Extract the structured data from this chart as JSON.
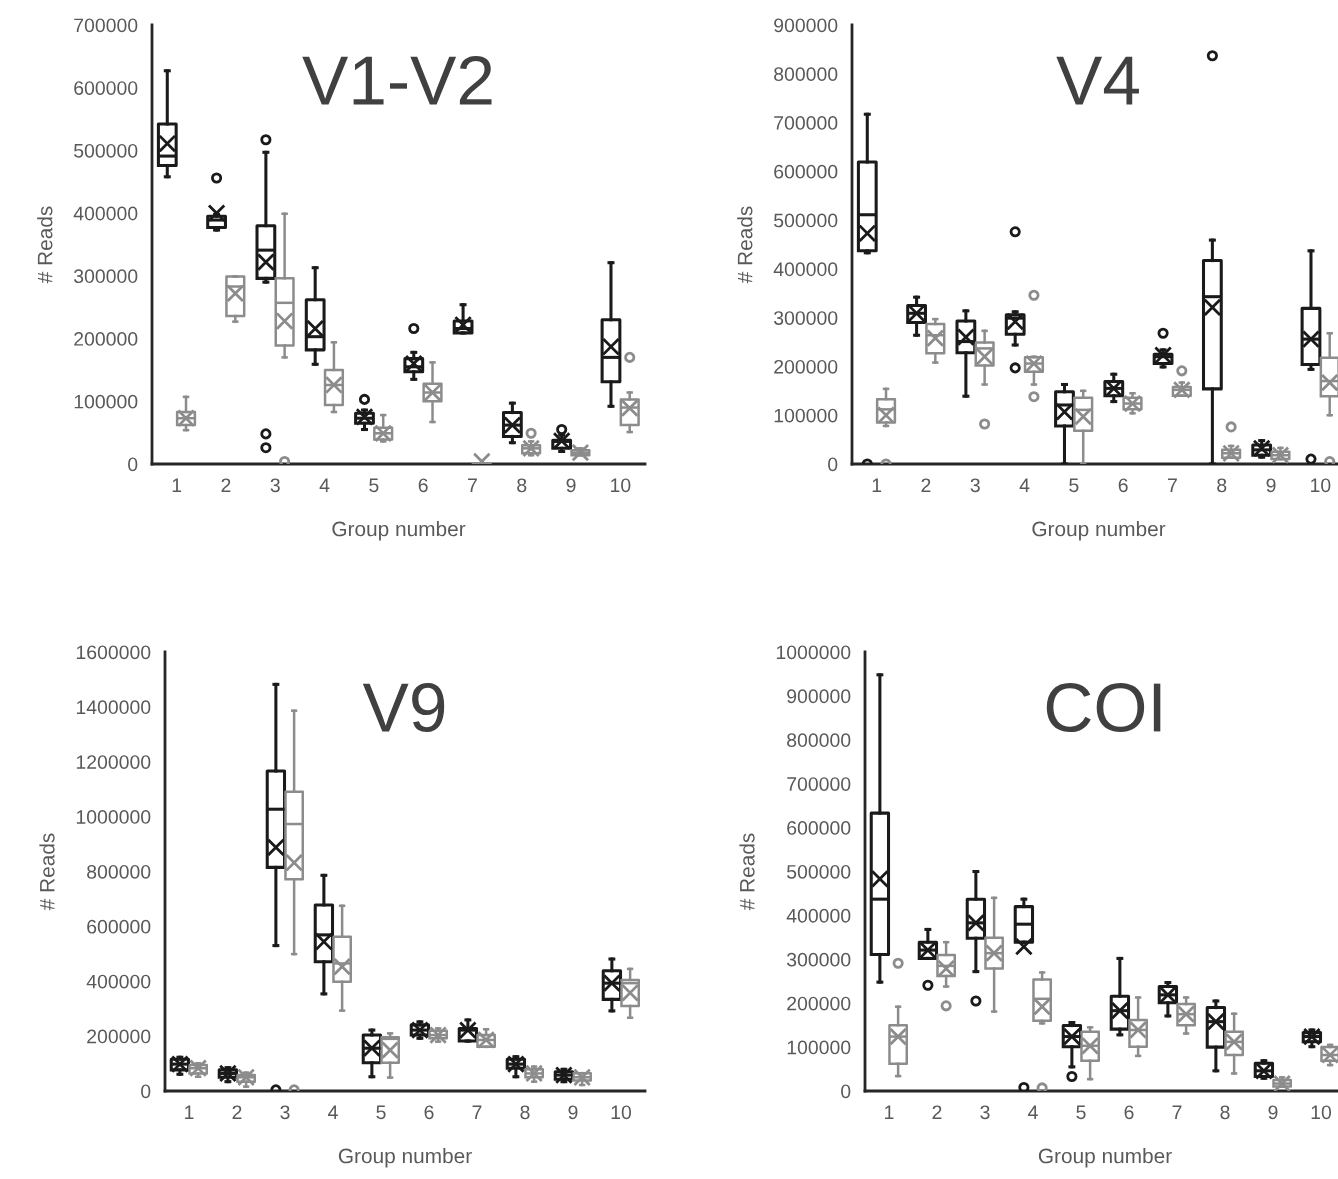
{
  "chart_data": [
    {
      "type": "box",
      "title": "V1-V2",
      "xlabel": "Group number",
      "ylabel": "# Reads",
      "categories": [
        "1",
        "2",
        "3",
        "4",
        "5",
        "6",
        "7",
        "8",
        "9",
        "10"
      ],
      "ylim": [
        0,
        700000
      ],
      "yticks": [
        0,
        100000,
        200000,
        300000,
        400000,
        500000,
        600000,
        700000
      ],
      "series": [
        {
          "color": "#1a1a1a",
          "boxes": [
            {
              "low": 458000,
              "q1": 476000,
              "median": 491000,
              "q3": 542000,
              "high": 627000,
              "mean": 511000
            },
            {
              "low": 373000,
              "q1": 377000,
              "median": 389000,
              "q3": 395000,
              "high": 398000,
              "mean": 400000,
              "outliers": [
                456000
              ]
            },
            {
              "low": 290000,
              "q1": 296000,
              "median": 341000,
              "q3": 380000,
              "high": 497000,
              "mean": 322000,
              "outliers": [
                517000,
                48000,
                26000
              ]
            },
            {
              "low": 159000,
              "q1": 182000,
              "median": 203000,
              "q3": 262000,
              "high": 313000,
              "mean": 216000
            },
            {
              "low": 55000,
              "q1": 65000,
              "median": 73000,
              "q3": 81000,
              "high": 86000,
              "mean": 75000,
              "outliers": [
                103000
              ]
            },
            {
              "low": 135000,
              "q1": 147000,
              "median": 155000,
              "q3": 168000,
              "high": 178000,
              "mean": 160000,
              "outliers": [
                216000
              ]
            },
            {
              "low": 209000,
              "q1": 209000,
              "median": 216000,
              "q3": 228000,
              "high": 254000,
              "mean": 222000
            },
            {
              "low": 34000,
              "q1": 44000,
              "median": 62000,
              "q3": 82000,
              "high": 97000,
              "mean": 62000
            },
            {
              "low": 20000,
              "q1": 25000,
              "median": 36000,
              "q3": 38000,
              "high": 46000,
              "mean": 37000,
              "outliers": [
                55000
              ]
            },
            {
              "low": 92000,
              "q1": 131000,
              "median": 170000,
              "q3": 230000,
              "high": 321000,
              "mean": 187000
            }
          ]
        },
        {
          "color": "#8c8c8c",
          "boxes": [
            {
              "low": 54000,
              "q1": 62000,
              "median": 73000,
              "q3": 83000,
              "high": 107000,
              "mean": 73000
            },
            {
              "low": 227000,
              "q1": 236000,
              "median": 283000,
              "q3": 299000,
              "high": 299000,
              "mean": 272000
            },
            {
              "low": 170000,
              "q1": 189000,
              "median": 257000,
              "q3": 296000,
              "high": 399000,
              "mean": 228000,
              "outliers": [
                4000
              ]
            },
            {
              "low": 83000,
              "q1": 94000,
              "median": 126000,
              "q3": 150000,
              "high": 194000,
              "mean": 126000
            },
            {
              "low": 36000,
              "q1": 39000,
              "median": 49000,
              "q3": 58000,
              "high": 78000,
              "mean": 49000
            },
            {
              "low": 67000,
              "q1": 100000,
              "median": 114000,
              "q3": 128000,
              "high": 162000,
              "mean": 114000
            },
            {
              "low": 0,
              "q1": 0,
              "median": 0,
              "q3": 0,
              "high": 0,
              "mean": 4000
            },
            {
              "low": 14000,
              "q1": 17000,
              "median": 25000,
              "q3": 30000,
              "high": 36000,
              "mean": 25000,
              "outliers": [
                49000
              ]
            },
            {
              "low": 14000,
              "q1": 14000,
              "median": 18000,
              "q3": 22000,
              "high": 25000,
              "mean": 18000
            },
            {
              "low": 51000,
              "q1": 62000,
              "median": 90000,
              "q3": 103000,
              "high": 114000,
              "mean": 89000,
              "outliers": [
                170000
              ]
            }
          ]
        }
      ]
    },
    {
      "type": "box",
      "title": "V4",
      "xlabel": "Group number",
      "ylabel": "# Reads",
      "categories": [
        "1",
        "2",
        "3",
        "4",
        "5",
        "6",
        "7",
        "8",
        "9",
        "10"
      ],
      "ylim": [
        0,
        900000
      ],
      "yticks": [
        0,
        100000,
        200000,
        300000,
        400000,
        500000,
        600000,
        700000,
        800000,
        900000
      ],
      "series": [
        {
          "color": "#1a1a1a",
          "boxes": [
            {
              "low": 433000,
              "q1": 437000,
              "median": 511000,
              "q3": 619000,
              "high": 717000,
              "mean": 473000,
              "outliers": [
                0
              ]
            },
            {
              "low": 264000,
              "q1": 290000,
              "median": 309000,
              "q3": 325000,
              "high": 342000,
              "mean": 309000
            },
            {
              "low": 139000,
              "q1": 228000,
              "median": 251000,
              "q3": 293000,
              "high": 314000,
              "mean": 260000
            },
            {
              "low": 244000,
              "q1": 266000,
              "median": 299000,
              "q3": 306000,
              "high": 312000,
              "mean": 292000,
              "outliers": [
                476000,
                197000
              ]
            },
            {
              "low": 0,
              "q1": 78000,
              "median": 121000,
              "q3": 148000,
              "high": 163000,
              "mean": 107000
            },
            {
              "low": 128000,
              "q1": 140000,
              "median": 155000,
              "q3": 169000,
              "high": 184000,
              "mean": 155000
            },
            {
              "low": 199000,
              "q1": 206000,
              "median": 220000,
              "q3": 225000,
              "high": 234000,
              "mean": 223000,
              "outliers": [
                268000
              ]
            },
            {
              "low": 0,
              "q1": 154000,
              "median": 343000,
              "q3": 417000,
              "high": 459000,
              "mean": 321000,
              "outliers": [
                837000
              ]
            },
            {
              "low": 14000,
              "q1": 18000,
              "median": 29000,
              "q3": 39000,
              "high": 48000,
              "mean": 32000
            },
            {
              "low": 194000,
              "q1": 204000,
              "median": 256000,
              "q3": 319000,
              "high": 437000,
              "mean": 256000,
              "outliers": [
                10000
              ]
            }
          ]
        },
        {
          "color": "#8c8c8c",
          "boxes": [
            {
              "low": 78000,
              "q1": 85000,
              "median": 112000,
              "q3": 133000,
              "high": 154000,
              "mean": 100000,
              "outliers": [
                0
              ]
            },
            {
              "low": 208000,
              "q1": 227000,
              "median": 264000,
              "q3": 287000,
              "high": 297000,
              "mean": 258000
            },
            {
              "low": 163000,
              "q1": 202000,
              "median": 237000,
              "q3": 249000,
              "high": 273000,
              "mean": 220000,
              "outliers": [
                82000
              ]
            },
            {
              "low": 163000,
              "q1": 189000,
              "median": 206000,
              "q3": 219000,
              "high": 220000,
              "mean": 206000,
              "outliers": [
                346000,
                138000
              ]
            },
            {
              "low": 0,
              "q1": 68000,
              "median": 111000,
              "q3": 136000,
              "high": 150000,
              "mean": 97000
            },
            {
              "low": 104000,
              "q1": 112000,
              "median": 124000,
              "q3": 136000,
              "high": 145000,
              "mean": 124000
            },
            {
              "low": 140000,
              "q1": 140000,
              "median": 152000,
              "q3": 158000,
              "high": 167000,
              "mean": 152000,
              "outliers": [
                191000
              ]
            },
            {
              "low": 13000,
              "q1": 13000,
              "median": 22000,
              "q3": 29000,
              "high": 37000,
              "mean": 22000,
              "outliers": [
                76000
              ]
            },
            {
              "low": 10000,
              "q1": 10000,
              "median": 18000,
              "q3": 25000,
              "high": 33000,
              "mean": 18000
            },
            {
              "low": 100000,
              "q1": 139000,
              "median": 170000,
              "q3": 218000,
              "high": 268000,
              "mean": 167000,
              "outliers": [
                5000
              ]
            }
          ]
        }
      ]
    },
    {
      "type": "box",
      "title": "V9",
      "xlabel": "Group number",
      "ylabel": "# Reads",
      "categories": [
        "1",
        "2",
        "3",
        "4",
        "5",
        "6",
        "7",
        "8",
        "9",
        "10"
      ],
      "ylim": [
        0,
        1600000
      ],
      "yticks": [
        0,
        200000,
        400000,
        600000,
        800000,
        1000000,
        1200000,
        1400000,
        1600000
      ],
      "series": [
        {
          "color": "#1a1a1a",
          "boxes": [
            {
              "low": 61000,
              "q1": 77000,
              "median": 98000,
              "q3": 116000,
              "high": 123000,
              "mean": 98000
            },
            {
              "low": 34000,
              "q1": 50000,
              "median": 64000,
              "q3": 77000,
              "high": 85000,
              "mean": 64000
            },
            {
              "low": 530000,
              "q1": 815000,
              "median": 1027000,
              "q3": 1166000,
              "high": 1482000,
              "mean": 888000,
              "outliers": [
                4000
              ]
            },
            {
              "low": 354000,
              "q1": 471000,
              "median": 569000,
              "q3": 678000,
              "high": 786000,
              "mean": 544000
            },
            {
              "low": 52000,
              "q1": 103000,
              "median": 156000,
              "q3": 204000,
              "high": 222000,
              "mean": 156000
            },
            {
              "low": 192000,
              "q1": 204000,
              "median": 222000,
              "q3": 241000,
              "high": 252000,
              "mean": 222000
            },
            {
              "low": 182000,
              "q1": 182000,
              "median": 222000,
              "q3": 228000,
              "high": 259000,
              "mean": 222000
            },
            {
              "low": 52000,
              "q1": 83000,
              "median": 98000,
              "q3": 116000,
              "high": 125000,
              "mean": 98000
            },
            {
              "low": 34000,
              "q1": 43000,
              "median": 58000,
              "q3": 70000,
              "high": 79000,
              "mean": 58000
            },
            {
              "low": 292000,
              "q1": 334000,
              "median": 393000,
              "q3": 438000,
              "high": 481000,
              "mean": 393000
            }
          ]
        },
        {
          "color": "#8c8c8c",
          "boxes": [
            {
              "low": 52000,
              "q1": 64000,
              "median": 83000,
              "q3": 95000,
              "high": 101000,
              "mean": 83000
            },
            {
              "low": 16000,
              "q1": 34000,
              "median": 50000,
              "q3": 58000,
              "high": 67000,
              "mean": 50000
            },
            {
              "low": 499000,
              "q1": 772000,
              "median": 973000,
              "q3": 1091000,
              "high": 1386000,
              "mean": 832000,
              "outliers": [
                4000
              ]
            },
            {
              "low": 293000,
              "q1": 398000,
              "median": 465000,
              "q3": 562000,
              "high": 675000,
              "mean": 453000
            },
            {
              "low": 49000,
              "q1": 103000,
              "median": 190000,
              "q3": 196000,
              "high": 210000,
              "mean": 149000
            },
            {
              "low": 180000,
              "q1": 192000,
              "median": 204000,
              "q3": 220000,
              "high": 228000,
              "mean": 204000
            },
            {
              "low": 161000,
              "q1": 161000,
              "median": 186000,
              "q3": 204000,
              "high": 225000,
              "mean": 186000
            },
            {
              "low": 34000,
              "q1": 50000,
              "median": 64000,
              "q3": 79000,
              "high": 89000,
              "mean": 64000
            },
            {
              "low": 22000,
              "q1": 38000,
              "median": 50000,
              "q3": 65000,
              "high": 65000,
              "mean": 50000
            },
            {
              "low": 267000,
              "q1": 310000,
              "median": 393000,
              "q3": 405000,
              "high": 445000,
              "mean": 358000
            }
          ]
        }
      ]
    },
    {
      "type": "box",
      "title": "COI",
      "xlabel": "Group number",
      "ylabel": "# Reads",
      "categories": [
        "1",
        "2",
        "3",
        "4",
        "5",
        "6",
        "7",
        "8",
        "9",
        "10"
      ],
      "ylim": [
        0,
        1000000
      ],
      "yticks": [
        0,
        100000,
        200000,
        300000,
        400000,
        500000,
        600000,
        700000,
        800000,
        900000,
        1000000
      ],
      "series": [
        {
          "color": "#1a1a1a",
          "boxes": [
            {
              "low": 248000,
              "q1": 311000,
              "median": 437000,
              "q3": 633000,
              "high": 948000,
              "mean": 483000
            },
            {
              "low": 302000,
              "q1": 302000,
              "median": 321000,
              "q3": 339000,
              "high": 368000,
              "mean": 321000,
              "outliers": [
                241000
              ]
            },
            {
              "low": 272000,
              "q1": 348000,
              "median": 383000,
              "q3": 437000,
              "high": 500000,
              "mean": 383000,
              "outliers": [
                205000
              ]
            },
            {
              "low": 339000,
              "q1": 339000,
              "median": 380000,
              "q3": 420000,
              "high": 437000,
              "mean": 329000,
              "outliers": [
                8000
              ]
            },
            {
              "low": 55000,
              "q1": 101000,
              "median": 124000,
              "q3": 149000,
              "high": 156000,
              "mean": 124000,
              "outliers": [
                33000
              ]
            },
            {
              "low": 128000,
              "q1": 141000,
              "median": 183000,
              "q3": 216000,
              "high": 302000,
              "mean": 183000
            },
            {
              "low": 171000,
              "q1": 201000,
              "median": 219000,
              "q3": 238000,
              "high": 247000,
              "mean": 219000
            },
            {
              "low": 46000,
              "q1": 100000,
              "median": 158000,
              "q3": 190000,
              "high": 205000,
              "mean": 158000
            },
            {
              "low": 29000,
              "q1": 33000,
              "median": 46000,
              "q3": 63000,
              "high": 69000,
              "mean": 46000
            },
            {
              "low": 101000,
              "q1": 112000,
              "median": 124000,
              "q3": 133000,
              "high": 139000,
              "mean": 124000
            }
          ]
        },
        {
          "color": "#8c8c8c",
          "boxes": [
            {
              "low": 34000,
              "q1": 62000,
              "median": 124000,
              "q3": 150000,
              "high": 192000,
              "mean": 124000,
              "outliers": [
                291000
              ]
            },
            {
              "low": 238000,
              "q1": 262000,
              "median": 285000,
              "q3": 310000,
              "high": 339000,
              "mean": 279000,
              "outliers": [
                194000
              ]
            },
            {
              "low": 181000,
              "q1": 279000,
              "median": 314000,
              "q3": 349000,
              "high": 440000,
              "mean": 314000
            },
            {
              "low": 154000,
              "q1": 160000,
              "median": 210000,
              "q3": 254000,
              "high": 270000,
              "mean": 192000,
              "outliers": [
                7000
              ]
            },
            {
              "low": 27000,
              "q1": 69000,
              "median": 103000,
              "q3": 135000,
              "high": 145000,
              "mean": 103000
            },
            {
              "low": 80000,
              "q1": 101000,
              "median": 139000,
              "q3": 162000,
              "high": 213000,
              "mean": 139000
            },
            {
              "low": 131000,
              "q1": 150000,
              "median": 175000,
              "q3": 198000,
              "high": 213000,
              "mean": 175000
            },
            {
              "low": 40000,
              "q1": 82000,
              "median": 112000,
              "q3": 135000,
              "high": 176000,
              "mean": 112000
            },
            {
              "low": 10000,
              "q1": 10000,
              "median": 17000,
              "q3": 25000,
              "high": 31000,
              "mean": 17000
            },
            {
              "low": 59000,
              "q1": 69000,
              "median": 82000,
              "q3": 100000,
              "high": 105000,
              "mean": 82000
            }
          ]
        }
      ]
    }
  ]
}
